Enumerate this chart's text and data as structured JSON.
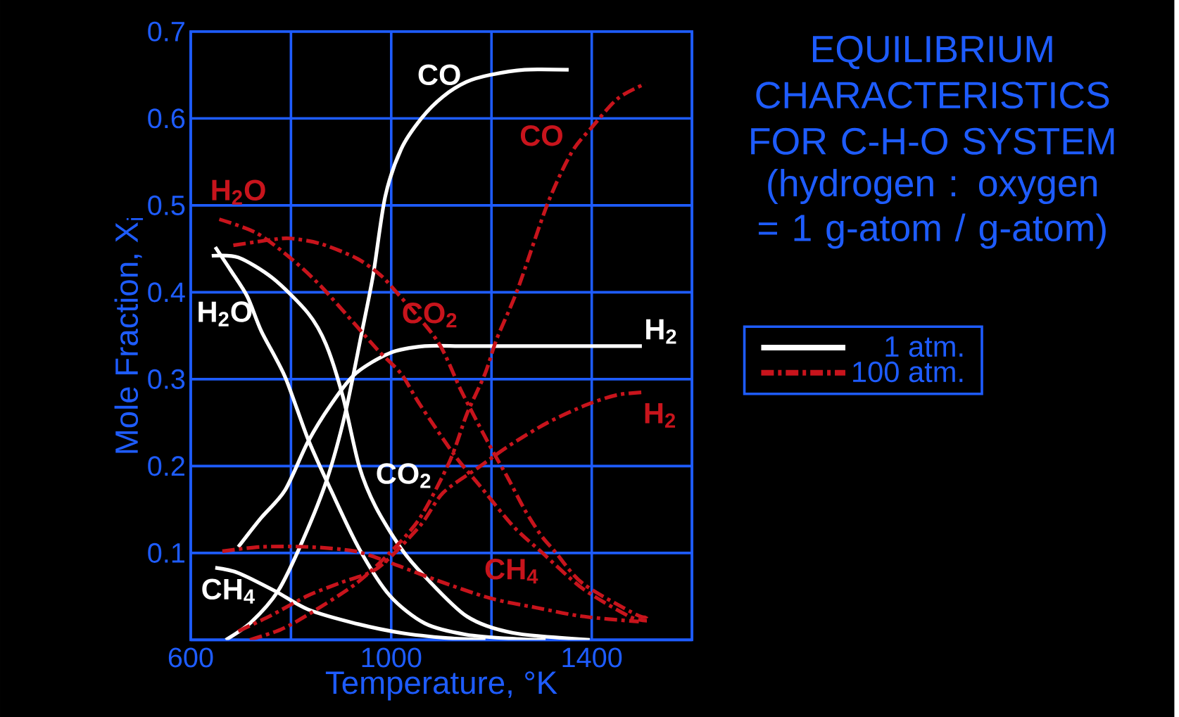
{
  "chart_data": {
    "type": "line",
    "title": "EQUILIBRIUM CHARACTERISTICS FOR C-H-O SYSTEM",
    "subtitle": "(hydrogen : oxygen = 1 g-atom / g-atom)",
    "xlabel": "Temperature, °K",
    "ylabel": "Mole Fraction, X$_{i}$",
    "xlim": [
      600,
      1600
    ],
    "xticks": [
      600,
      {
        "value": 800,
        "label": null
      },
      1000,
      {
        "value": 1200,
        "label": null
      },
      1400,
      {
        "value": 1600,
        "label": null
      }
    ],
    "ylim": [
      0,
      0.7
    ],
    "yticks": [
      {
        "value": 0,
        "label": null
      },
      0.1,
      0.2,
      0.3,
      0.4,
      0.5,
      0.6,
      0.7
    ],
    "grid": true,
    "legend": "right",
    "series": [
      {
        "name": "1 atm.",
        "color": "#ffffff",
        "line_style": "solid",
        "x": [
          670,
          720,
          774,
          824,
          872,
          908,
          940,
          964,
          988,
          1020,
          1060,
          1103,
          1150,
          1197,
          1266,
          1354
        ],
        "values": [
          0,
          0.02,
          0.056,
          0.115,
          0.185,
          0.26,
          0.35,
          0.42,
          0.51,
          0.565,
          0.6,
          0.625,
          0.642,
          0.65,
          0.656,
          0.656
        ]
      },
      {
        "color": "#ffffff",
        "line_style": "solid",
        "x": [
          649,
          680,
          713,
          741,
          788,
          834,
          880,
          936,
          997,
          1067,
          1150,
          1250,
          1308
        ],
        "values": [
          0.452,
          0.425,
          0.395,
          0.355,
          0.303,
          0.231,
          0.172,
          0.105,
          0.051,
          0.019,
          0.006,
          0.001,
          0
        ]
      },
      {
        "color": "#ffffff",
        "line_style": "solid",
        "x": [
          642,
          695,
          764,
          834,
          870,
          904,
          936,
          969,
          1020,
          1067,
          1151,
          1243,
          1396
        ],
        "values": [
          0.442,
          0.44,
          0.416,
          0.376,
          0.34,
          0.279,
          0.2,
          0.153,
          0.105,
          0.073,
          0.027,
          0.008,
          0
        ]
      },
      {
        "color": "#ffffff",
        "line_style": "solid",
        "x": [
          695,
          740,
          788,
          834,
          880,
          928,
          997,
          1067,
          1150,
          1300,
          1500
        ],
        "values": [
          0.107,
          0.14,
          0.172,
          0.228,
          0.271,
          0.306,
          0.33,
          0.338,
          0.338,
          0.338,
          0.338
        ]
      },
      {
        "color": "#ffffff",
        "line_style": "solid",
        "x": [
          649,
          695,
          769,
          834,
          928,
          1020,
          1113,
          1188
        ],
        "values": [
          0.083,
          0.077,
          0.056,
          0.035,
          0.019,
          0.008,
          0.002,
          0
        ]
      },
      {
        "name": "100 atm.",
        "color": "#c8141c",
        "line_style": "dashdot",
        "x": [
          718,
          780,
          834,
          928,
          995,
          1057,
          1117,
          1151,
          1187,
          1211,
          1252,
          1312,
          1360,
          1402,
          1452,
          1507
        ],
        "values": [
          0,
          0.012,
          0.029,
          0.064,
          0.099,
          0.14,
          0.206,
          0.26,
          0.306,
          0.347,
          0.403,
          0.502,
          0.561,
          0.591,
          0.623,
          0.64
        ]
      },
      {
        "color": "#c8141c",
        "line_style": "dashdot",
        "x": [
          657,
          732,
          802,
          858,
          928,
          974,
          1020,
          1057,
          1127,
          1173,
          1243,
          1298,
          1382,
          1475,
          1510
        ],
        "values": [
          0.484,
          0.468,
          0.438,
          0.408,
          0.363,
          0.333,
          0.306,
          0.271,
          0.212,
          0.18,
          0.131,
          0.102,
          0.059,
          0.027,
          0.022
        ]
      },
      {
        "color": "#c8141c",
        "line_style": "dashdot",
        "x": [
          685,
          755,
          797,
          858,
          928,
          974,
          1006,
          1092,
          1141,
          1197,
          1234,
          1266,
          1298,
          1326,
          1382,
          1489,
          1510
        ],
        "values": [
          0.454,
          0.46,
          0.462,
          0.456,
          0.44,
          0.422,
          0.403,
          0.344,
          0.285,
          0.223,
          0.185,
          0.15,
          0.121,
          0.102,
          0.065,
          0.029,
          0.027
        ]
      },
      {
        "color": "#c8141c",
        "line_style": "dashdot",
        "x": [
          695,
          760,
          834,
          900,
          974,
          1057,
          1103,
          1173,
          1234,
          1312,
          1392,
          1452,
          1507
        ],
        "values": [
          0.01,
          0.028,
          0.051,
          0.066,
          0.083,
          0.131,
          0.169,
          0.198,
          0.223,
          0.25,
          0.271,
          0.282,
          0.285
        ]
      },
      {
        "color": "#c8141c",
        "line_style": "dashdot",
        "x": [
          663,
          741,
          834,
          928,
          997,
          1089,
          1197,
          1290,
          1382,
          1494
        ],
        "values": [
          0.102,
          0.107,
          0.107,
          0.102,
          0.089,
          0.069,
          0.048,
          0.037,
          0.027,
          0.021
        ]
      }
    ],
    "annotations": [
      "CO",
      "H$_{2}$O",
      "CO$_{2}$",
      "H$_{2}$",
      "CH$_{4}$",
      "CO",
      "H$_{2}$O",
      "CO$_{2}$",
      "H$_{2}$",
      "CH$_{4}$"
    ]
  }
}
